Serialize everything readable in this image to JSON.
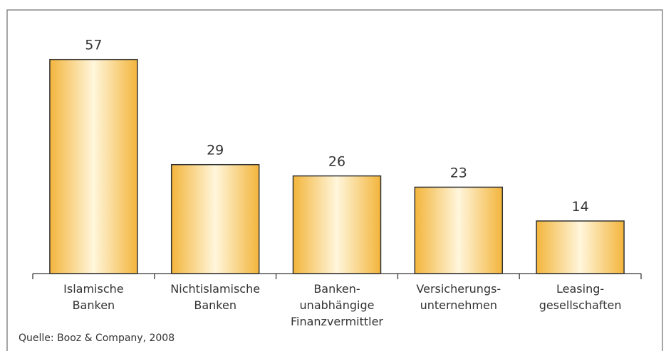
{
  "chart_data": {
    "type": "bar",
    "categories": [
      "Islamische\nBanken",
      "Nichtislamische\nBanken",
      "Banken-\nunabhängige\nFinanzvermittler",
      "Versicherungs-\nunternehmen",
      "Leasing-\ngesellschaften"
    ],
    "values": [
      57,
      29,
      26,
      23,
      14
    ],
    "color": "#f3b53c",
    "ylim": [
      0,
      70
    ],
    "source": "Quelle: Booz & Company, 2008"
  }
}
